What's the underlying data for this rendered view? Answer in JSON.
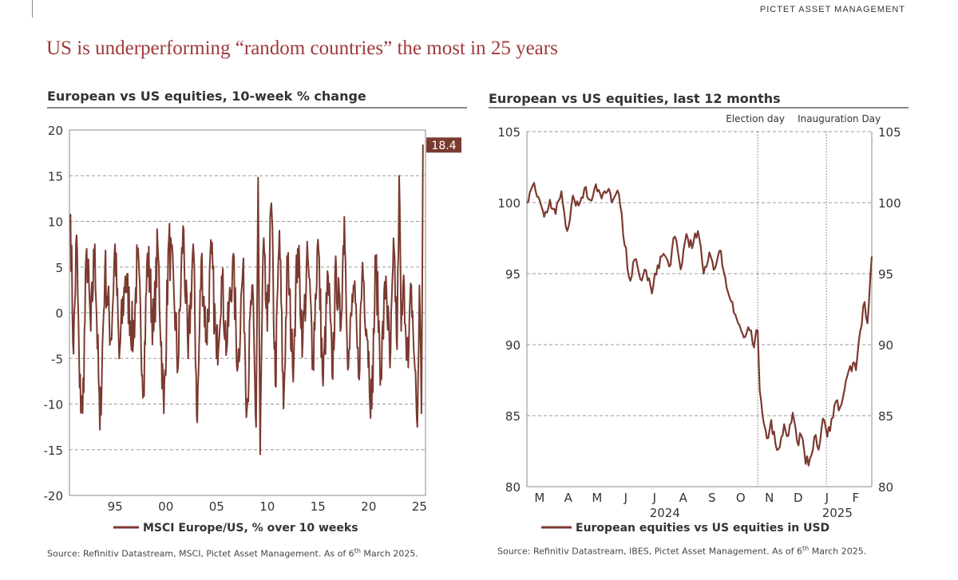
{
  "header": {
    "brand": "PICTET ASSET MANAGEMENT",
    "headline": "US is underperforming “random countries” the most in 25 years"
  },
  "colors": {
    "series": "#7b3a30",
    "headline": "#9e3a3a",
    "label_bg": "#7b3a30"
  },
  "chart_data": [
    {
      "type": "line",
      "title": "European vs US equities, 10-week % change",
      "ylim": [
        -20,
        20
      ],
      "y_ticks": [
        20,
        15,
        10,
        5,
        0,
        -5,
        -10,
        -15,
        -20
      ],
      "y_tick_labels": [
        "20",
        "15",
        "10",
        "5",
        "0",
        "-5",
        "-10",
        "-15",
        "-20"
      ],
      "x_range": [
        1990.5,
        2025.6
      ],
      "x_ticks": [
        1995,
        2000,
        2005,
        2010,
        2015,
        2020,
        2025
      ],
      "x_tick_labels": [
        "95",
        "00",
        "05",
        "10",
        "15",
        "20",
        "25"
      ],
      "grid": "horizontal-dashed",
      "last_value_label": "18.4",
      "series": [
        {
          "name": "MSCI Europe/US, % over 10 weeks",
          "anchors": [
            [
              1990.6,
              10.8
            ],
            [
              1990.9,
              -4.5
            ],
            [
              1991.2,
              8.5
            ],
            [
              1991.5,
              -8.2
            ],
            [
              1991.8,
              -11.0
            ],
            [
              1992.2,
              7.0
            ],
            [
              1992.6,
              -2.0
            ],
            [
              1993.0,
              7.5
            ],
            [
              1993.5,
              -12.8
            ],
            [
              1994.0,
              5.0
            ],
            [
              1994.6,
              -3.0
            ],
            [
              1995.0,
              7.5
            ],
            [
              1995.4,
              -5.0
            ],
            [
              1996.0,
              4.0
            ],
            [
              1996.8,
              -3.0
            ],
            [
              1997.2,
              6.0
            ],
            [
              1997.8,
              -8.0
            ],
            [
              1998.2,
              6.5
            ],
            [
              1998.8,
              -2.0
            ],
            [
              1999.2,
              7.5
            ],
            [
              1999.8,
              -11.0
            ],
            [
              2000.3,
              8.0
            ],
            [
              2000.8,
              2.0
            ],
            [
              2001.2,
              -6.0
            ],
            [
              2001.7,
              9.5
            ],
            [
              2002.2,
              -5.0
            ],
            [
              2002.7,
              7.5
            ],
            [
              2003.1,
              -12.0
            ],
            [
              2003.5,
              6.0
            ],
            [
              2004.0,
              -3.0
            ],
            [
              2004.5,
              6.5
            ],
            [
              2005.0,
              -5.0
            ],
            [
              2005.5,
              4.0
            ],
            [
              2006.0,
              -4.0
            ],
            [
              2006.6,
              6.0
            ],
            [
              2007.1,
              -6.0
            ],
            [
              2007.6,
              5.0
            ],
            [
              2008.0,
              -10.5
            ],
            [
              2008.5,
              3.0
            ],
            [
              2008.9,
              -12.5
            ],
            [
              2009.1,
              14.8
            ],
            [
              2009.3,
              -15.5
            ],
            [
              2009.6,
              7.0
            ],
            [
              2010.0,
              -2.0
            ],
            [
              2010.4,
              12.0
            ],
            [
              2010.8,
              -8.0
            ],
            [
              2011.2,
              9.0
            ],
            [
              2011.6,
              -10.5
            ],
            [
              2012.0,
              6.0
            ],
            [
              2012.5,
              -6.0
            ],
            [
              2013.0,
              7.0
            ],
            [
              2013.5,
              -3.0
            ],
            [
              2014.0,
              6.0
            ],
            [
              2014.5,
              -5.0
            ],
            [
              2015.0,
              8.0
            ],
            [
              2015.5,
              -8.0
            ],
            [
              2016.0,
              4.0
            ],
            [
              2016.4,
              -7.0
            ],
            [
              2016.8,
              5.0
            ],
            [
              2017.2,
              -2.0
            ],
            [
              2017.6,
              10.5
            ],
            [
              2018.0,
              -6.0
            ],
            [
              2018.5,
              3.0
            ],
            [
              2019.0,
              -7.0
            ],
            [
              2019.4,
              5.5
            ],
            [
              2019.9,
              -3.0
            ],
            [
              2020.3,
              -10.5
            ],
            [
              2020.7,
              6.0
            ],
            [
              2021.2,
              -6.5
            ],
            [
              2021.7,
              4.0
            ],
            [
              2022.1,
              -6.0
            ],
            [
              2022.5,
              7.0
            ],
            [
              2022.8,
              -4.0
            ],
            [
              2023.0,
              15.0
            ],
            [
              2023.2,
              -2.0
            ],
            [
              2023.5,
              3.0
            ],
            [
              2023.9,
              -6.0
            ],
            [
              2024.2,
              3.0
            ],
            [
              2024.5,
              -5.0
            ],
            [
              2024.8,
              -12.5
            ],
            [
              2025.0,
              3.0
            ],
            [
              2025.2,
              -11.0
            ],
            [
              2025.35,
              18.4
            ]
          ]
        }
      ]
    },
    {
      "type": "line",
      "title": "European vs US equities, last 12 months",
      "ylim": [
        80,
        105
      ],
      "y_ticks": [
        105,
        100,
        95,
        90,
        85,
        80
      ],
      "y_tick_labels": [
        "105",
        "100",
        "95",
        "90",
        "85",
        "80"
      ],
      "x_range": [
        0,
        12
      ],
      "x_ticks": [
        0.3,
        1.3,
        2.3,
        3.3,
        4.3,
        5.3,
        6.3,
        7.3,
        8.3,
        9.3,
        10.3,
        11.3
      ],
      "x_tick_labels": [
        "M",
        "A",
        "M",
        "J",
        "J",
        "A",
        "S",
        "O",
        "N",
        "D",
        "J",
        "F"
      ],
      "year_labels": [
        {
          "x": 4.8,
          "label": "2024"
        },
        {
          "x": 10.8,
          "label": "2025"
        }
      ],
      "annotations": [
        {
          "x": 8.03,
          "label": "Election day"
        },
        {
          "x": 10.42,
          "label": "Inauguration Day"
        }
      ],
      "grid": "horizontal-dashed",
      "series": [
        {
          "name": "European equities vs US equities in USD",
          "anchors": [
            [
              0.0,
              100.0
            ],
            [
              0.2,
              101.2
            ],
            [
              0.4,
              100.4
            ],
            [
              0.6,
              99.0
            ],
            [
              0.8,
              100.2
            ],
            [
              1.0,
              99.2
            ],
            [
              1.2,
              100.8
            ],
            [
              1.4,
              98.0
            ],
            [
              1.6,
              100.5
            ],
            [
              1.8,
              99.8
            ],
            [
              2.0,
              101.0
            ],
            [
              2.2,
              100.2
            ],
            [
              2.4,
              101.3
            ],
            [
              2.6,
              100.3
            ],
            [
              2.8,
              100.8
            ],
            [
              3.0,
              100.2
            ],
            [
              3.2,
              100.6
            ],
            [
              3.4,
              97.0
            ],
            [
              3.6,
              94.5
            ],
            [
              3.75,
              96.0
            ],
            [
              3.95,
              94.6
            ],
            [
              4.15,
              95.2
            ],
            [
              4.35,
              93.6
            ],
            [
              4.55,
              95.6
            ],
            [
              4.75,
              96.4
            ],
            [
              4.95,
              95.5
            ],
            [
              5.15,
              97.6
            ],
            [
              5.35,
              95.3
            ],
            [
              5.55,
              97.8
            ],
            [
              5.75,
              96.8
            ],
            [
              5.95,
              98.0
            ],
            [
              6.15,
              95.0
            ],
            [
              6.35,
              96.5
            ],
            [
              6.55,
              95.4
            ],
            [
              6.75,
              96.6
            ],
            [
              6.95,
              94.0
            ],
            [
              7.15,
              93.0
            ],
            [
              7.35,
              91.5
            ],
            [
              7.55,
              90.5
            ],
            [
              7.75,
              91.0
            ],
            [
              7.9,
              89.8
            ],
            [
              8.03,
              91.0
            ],
            [
              8.1,
              86.8
            ],
            [
              8.2,
              85.0
            ],
            [
              8.35,
              83.4
            ],
            [
              8.5,
              84.7
            ],
            [
              8.65,
              83.0
            ],
            [
              8.8,
              82.8
            ],
            [
              8.95,
              84.4
            ],
            [
              9.1,
              83.6
            ],
            [
              9.25,
              85.2
            ],
            [
              9.4,
              83.2
            ],
            [
              9.55,
              83.6
            ],
            [
              9.7,
              81.6
            ],
            [
              9.85,
              82.0
            ],
            [
              10.0,
              83.5
            ],
            [
              10.15,
              82.6
            ],
            [
              10.3,
              84.8
            ],
            [
              10.45,
              83.5
            ],
            [
              10.6,
              84.8
            ],
            [
              10.75,
              86.0
            ],
            [
              10.9,
              85.6
            ],
            [
              11.05,
              86.8
            ],
            [
              11.25,
              88.5
            ],
            [
              11.45,
              88.2
            ],
            [
              11.6,
              91.0
            ],
            [
              11.75,
              93.0
            ],
            [
              11.85,
              91.5
            ],
            [
              12.0,
              96.2
            ]
          ]
        }
      ]
    }
  ],
  "panels": {
    "left": {
      "legend": "MSCI Europe/US, % over 10 weeks",
      "source": "Source: Refinitiv Datastream, MSCI, Pictet Asset Management. As of 6",
      "source_sup": "th",
      "source_tail": " March 2025."
    },
    "right": {
      "legend": "European equities vs US equities in USD",
      "source": "Source: Refinitiv Datastream, IBES, Pictet Asset Management. As of 6",
      "source_sup": "th",
      "source_tail": " March 2025."
    }
  }
}
